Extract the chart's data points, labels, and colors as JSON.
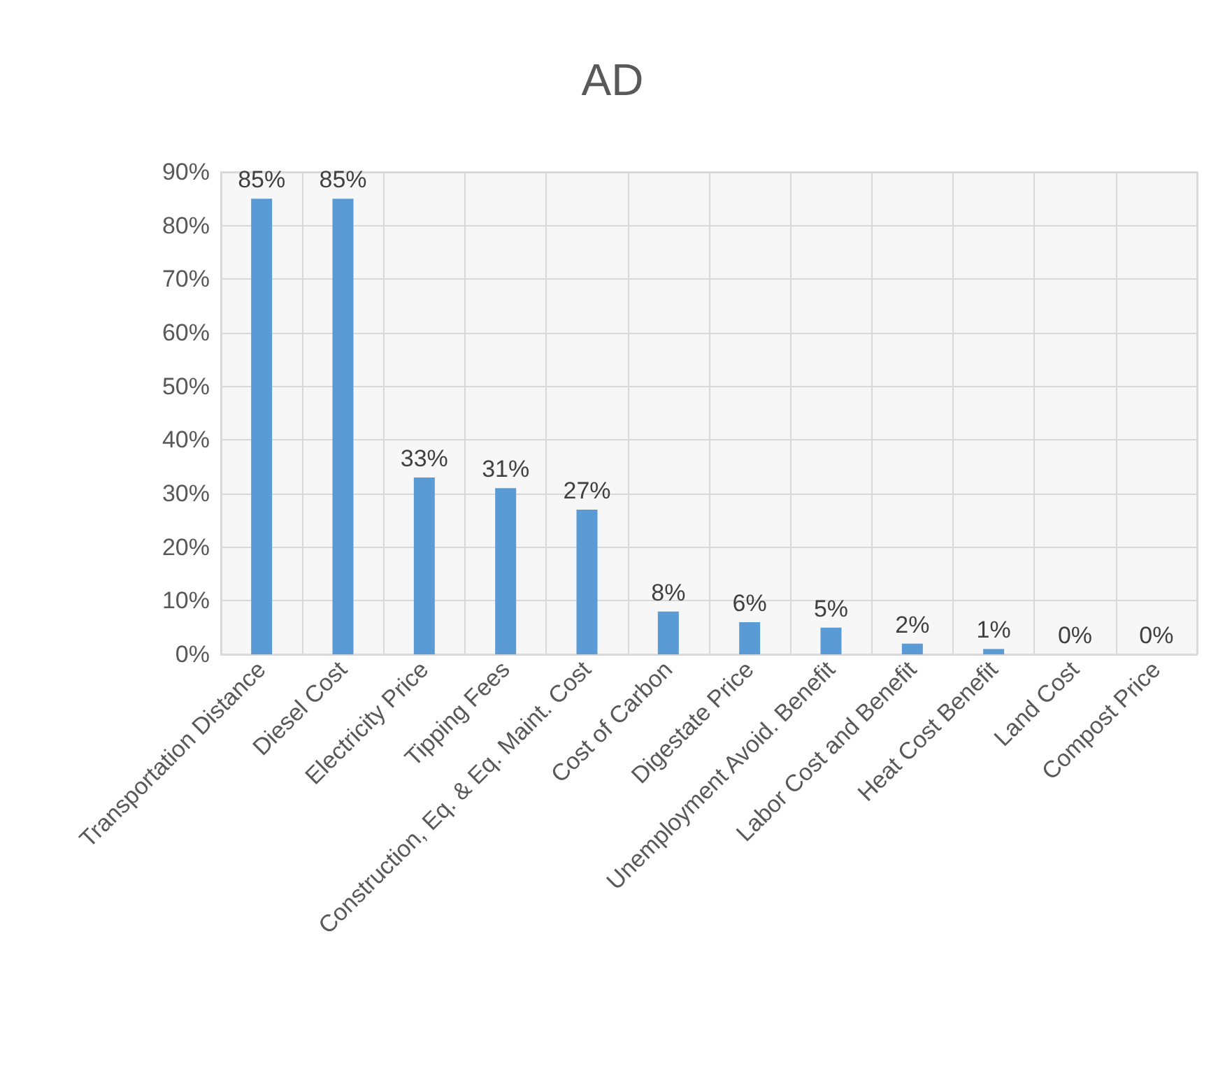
{
  "chart_data": {
    "type": "bar",
    "title": "AD",
    "categories": [
      "Transportation Distance",
      "Diesel Cost",
      "Electricity Price",
      "Tipping Fees",
      "Construction, Eq. & Eq. Maint. Cost",
      "Cost of Carbon",
      "Digestate Price",
      "Unemployment Avoid. Benefit",
      "Labor Cost and Benefit",
      "Heat Cost Benefit",
      "Land Cost",
      "Compost Price"
    ],
    "values": [
      85,
      85,
      33,
      31,
      27,
      8,
      6,
      5,
      2,
      1,
      0,
      0
    ],
    "value_labels": [
      "85%",
      "85%",
      "33%",
      "31%",
      "27%",
      "8%",
      "6%",
      "5%",
      "2%",
      "1%",
      "0%",
      "0%"
    ],
    "color": "#5b9bd5",
    "ylim": [
      0,
      90
    ],
    "yticks": [
      {
        "value": 0,
        "label": "0%"
      },
      {
        "value": 10,
        "label": "10%"
      },
      {
        "value": 20,
        "label": "20%"
      },
      {
        "value": 30,
        "label": "30%"
      },
      {
        "value": 40,
        "label": "40%"
      },
      {
        "value": 50,
        "label": "50%"
      },
      {
        "value": 60,
        "label": "60%"
      },
      {
        "value": 70,
        "label": "70%"
      },
      {
        "value": 80,
        "label": "80%"
      },
      {
        "value": 90,
        "label": "90%"
      }
    ],
    "grid": true
  }
}
